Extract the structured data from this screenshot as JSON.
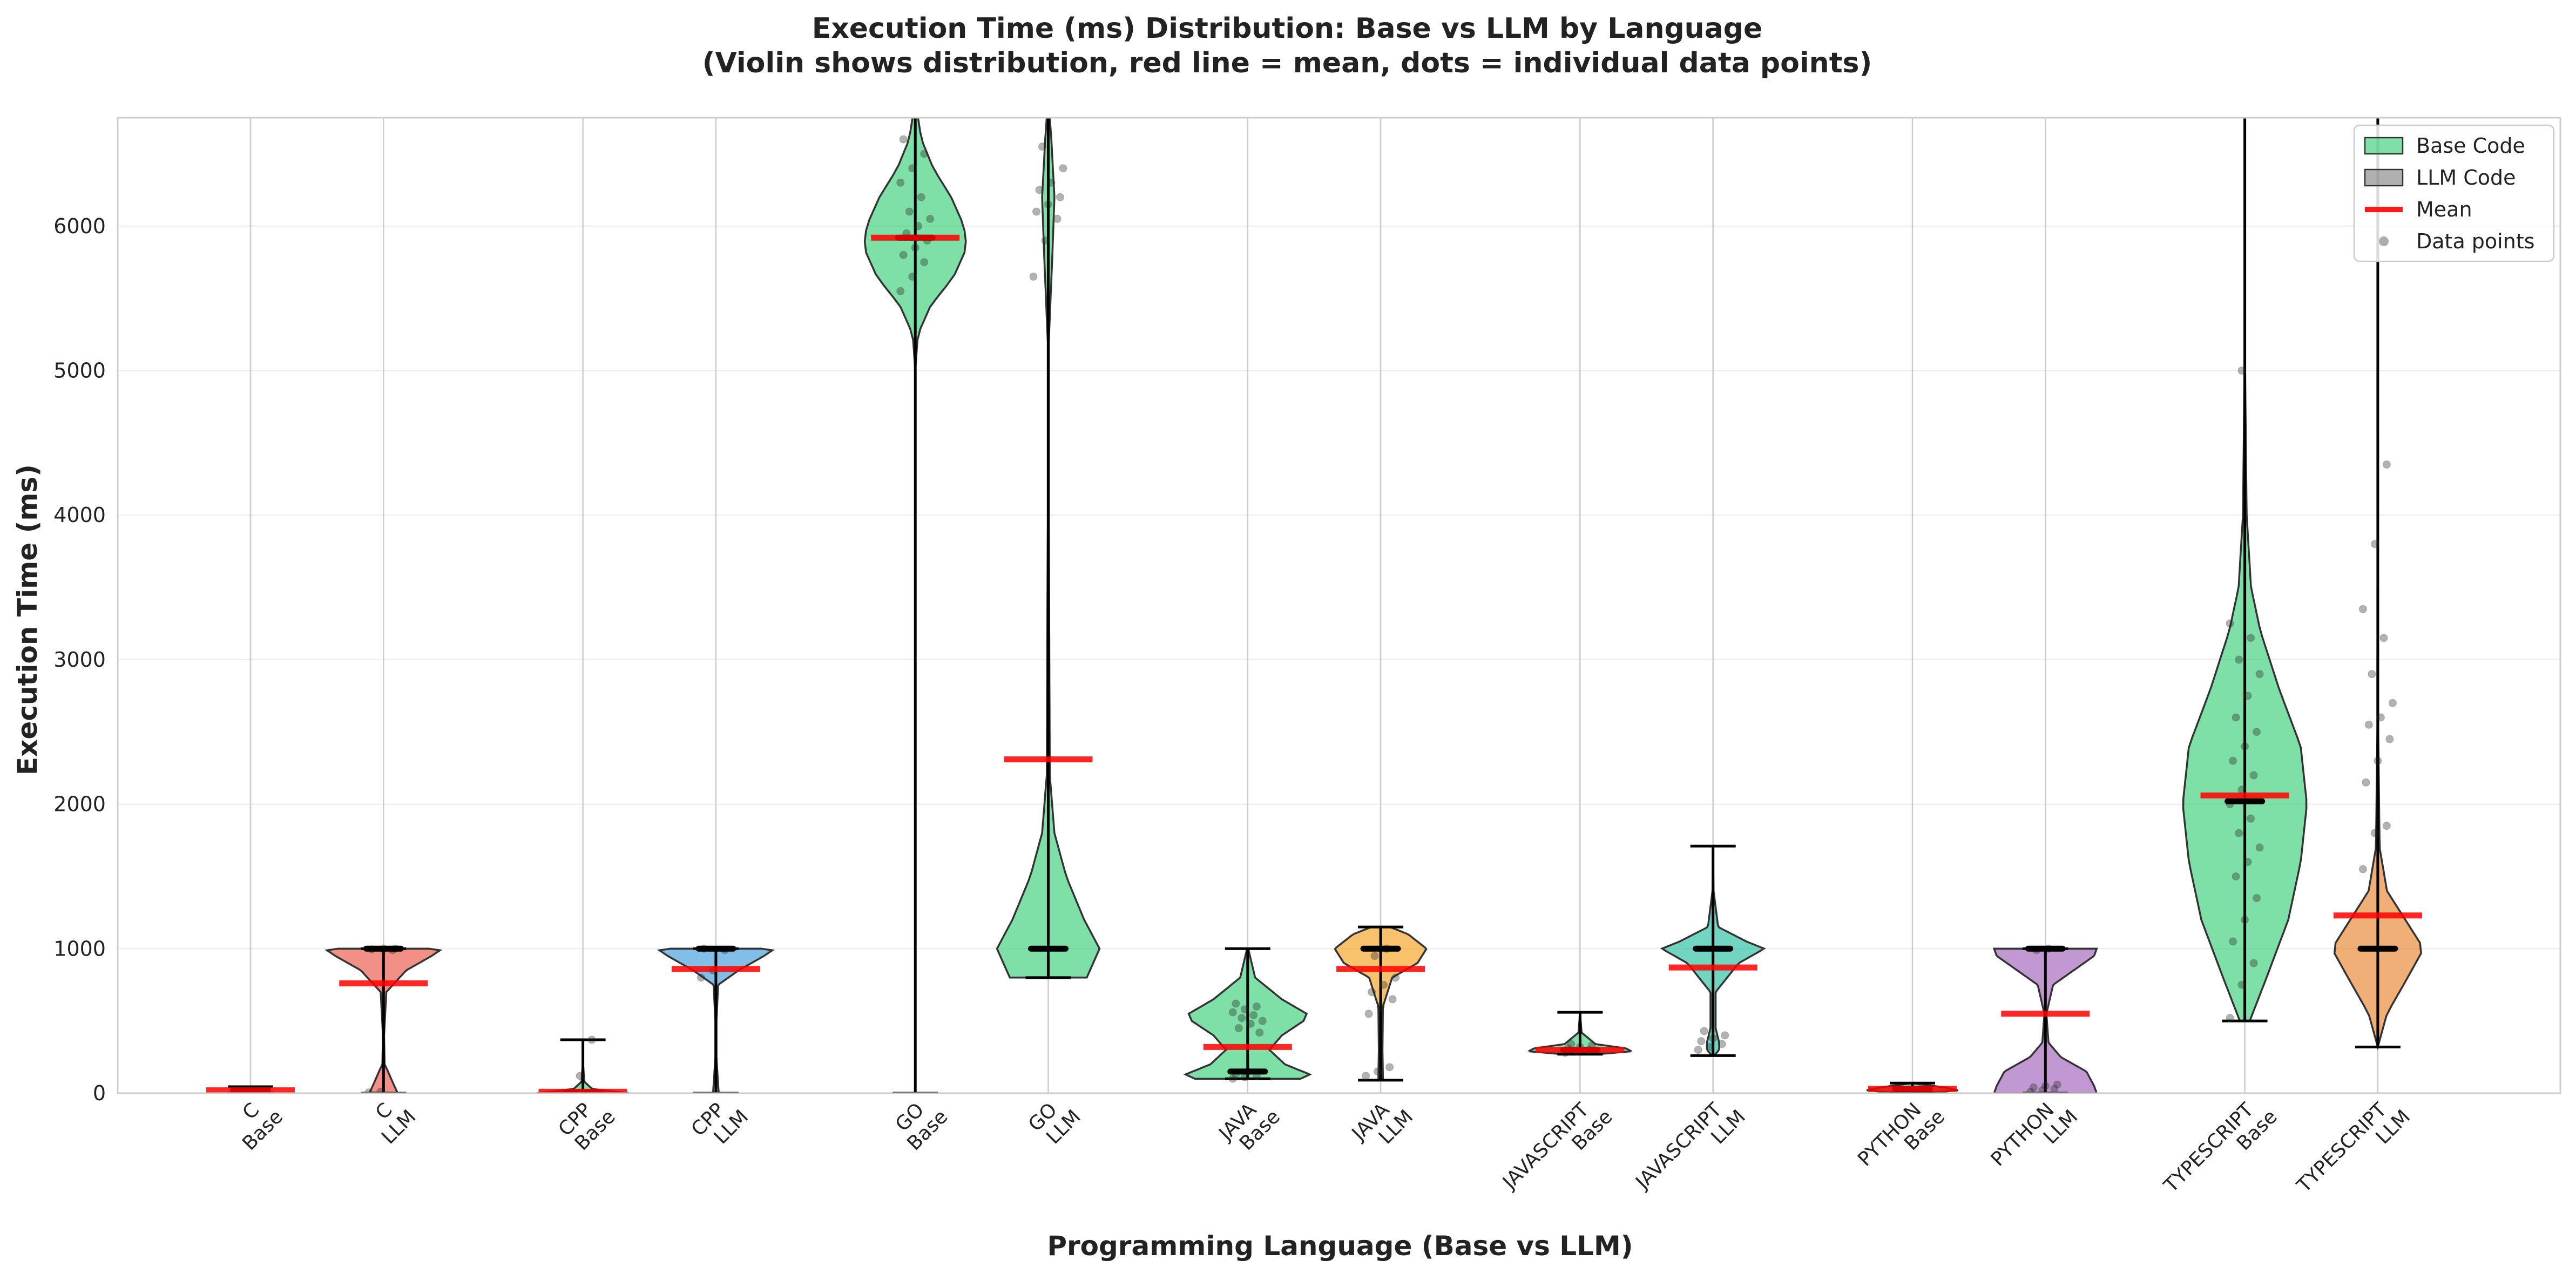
{
  "chart_data": {
    "type": "violin",
    "title": "Execution Time (ms) Distribution: Base vs LLM by Language",
    "subtitle": "(Violin shows distribution, red line = mean, dots = individual data points)",
    "xlabel": "Programming Language (Base vs LLM)",
    "ylabel": "Execution Time (ms)",
    "ylim": [
      0,
      6750
    ],
    "yticks": [
      "0",
      "1000",
      "2000",
      "3000",
      "4000",
      "5000",
      "6000"
    ],
    "grid": true,
    "legend_position": "top-right",
    "legend": [
      {
        "label": "Base Code",
        "kind": "patch",
        "color": "#2ecc71"
      },
      {
        "label": "LLM Code",
        "kind": "patch",
        "color": "#7f7f7f"
      },
      {
        "label": "Mean",
        "kind": "line",
        "color": "#ff0000"
      },
      {
        "label": "Data points",
        "kind": "dot",
        "color": "#999999"
      }
    ],
    "series": [
      {
        "language": "C",
        "variant": "Base",
        "label_line1": "C",
        "label_line2": "Base",
        "color": "#2ecc71",
        "min": 0,
        "max": 45,
        "median": 20,
        "mean": 20,
        "hw": 0,
        "shape": [
          [
            0,
            0
          ],
          [
            8,
            0.05
          ],
          [
            20,
            0.09
          ],
          [
            35,
            0.05
          ],
          [
            45,
            0
          ]
        ],
        "points": []
      },
      {
        "language": "C",
        "variant": "LLM",
        "label_line1": "C",
        "label_line2": "LLM",
        "color": "#e74c3c",
        "min": 0,
        "max": 1000,
        "median": 1000,
        "mean": 760,
        "hw": 105,
        "shape": [
          [
            0,
            0.25
          ],
          [
            60,
            0.18
          ],
          [
            150,
            0.08
          ],
          [
            200,
            0.02
          ],
          [
            400,
            0.01
          ],
          [
            700,
            0.05
          ],
          [
            850,
            0.4
          ],
          [
            950,
            0.85
          ],
          [
            990,
            1
          ],
          [
            1000,
            0.8
          ]
        ],
        "points": [
          5,
          10,
          990,
          995,
          1000,
          1000
        ]
      },
      {
        "language": "CPP",
        "variant": "Base",
        "label_line1": "CPP",
        "label_line2": "Base",
        "color": "#2ecc71",
        "min": 0,
        "max": 370,
        "median": 5,
        "mean": 10,
        "hw": 85,
        "shape": [
          [
            0,
            1
          ],
          [
            10,
            0.7
          ],
          [
            30,
            0.2
          ],
          [
            80,
            0.03
          ],
          [
            200,
            0.005
          ],
          [
            370,
            0
          ]
        ],
        "points": [
          5,
          120,
          370
        ]
      },
      {
        "language": "CPP",
        "variant": "LLM",
        "label_line1": "CPP",
        "label_line2": "LLM",
        "color": "#3498db",
        "min": 0,
        "max": 1000,
        "median": 1000,
        "mean": 860,
        "hw": 105,
        "shape": [
          [
            0,
            0.05
          ],
          [
            120,
            0.03
          ],
          [
            250,
            0.01
          ],
          [
            500,
            0.01
          ],
          [
            750,
            0.04
          ],
          [
            850,
            0.4
          ],
          [
            950,
            0.85
          ],
          [
            990,
            1
          ],
          [
            1000,
            0.8
          ]
        ],
        "points": [
          800,
          850,
          990,
          1000
        ]
      },
      {
        "language": "GO",
        "variant": "Base",
        "label_line1": "GO",
        "label_line2": "Base",
        "color": "#2ecc71",
        "min": 0,
        "max": 6800,
        "median": 5920,
        "mean": 5920,
        "hw": 95,
        "shape": [
          [
            0,
            0
          ],
          [
            5000,
            0
          ],
          [
            5250,
            0.05
          ],
          [
            5450,
            0.3
          ],
          [
            5650,
            0.75
          ],
          [
            5850,
            1
          ],
          [
            6000,
            0.95
          ],
          [
            6200,
            0.7
          ],
          [
            6400,
            0.35
          ],
          [
            6600,
            0.12
          ],
          [
            6800,
            0.03
          ]
        ],
        "points": [
          5550,
          5650,
          5750,
          5800,
          5850,
          5900,
          5950,
          6000,
          6050,
          6100,
          6200,
          6300,
          6400,
          6500,
          6600
        ]
      },
      {
        "language": "GO",
        "variant": "LLM",
        "label_line1": "GO",
        "label_line2": "LLM",
        "color": "#2ecc71",
        "min": 800,
        "max": 6800,
        "median": 1000,
        "mean": 2310,
        "hw": 95,
        "shape": [
          [
            800,
            0.75
          ],
          [
            1000,
            1
          ],
          [
            1200,
            0.7
          ],
          [
            1500,
            0.35
          ],
          [
            1800,
            0.12
          ],
          [
            2200,
            0.03
          ],
          [
            4000,
            0.01
          ],
          [
            5200,
            0.01
          ],
          [
            5800,
            0.08
          ],
          [
            6200,
            0.12
          ],
          [
            6600,
            0.06
          ],
          [
            6800,
            0.02
          ]
        ],
        "points": [
          5650,
          5900,
          6050,
          6100,
          6150,
          6200,
          6250,
          6300,
          6400,
          6550
        ]
      },
      {
        "language": "JAVA",
        "variant": "Base",
        "label_line1": "JAVA",
        "label_line2": "Base",
        "color": "#2ecc71",
        "min": 100,
        "max": 1000,
        "median": 150,
        "mean": 320,
        "hw": 115,
        "shape": [
          [
            100,
            0.85
          ],
          [
            130,
            1
          ],
          [
            200,
            0.6
          ],
          [
            300,
            0.35
          ],
          [
            400,
            0.55
          ],
          [
            500,
            0.9
          ],
          [
            550,
            0.95
          ],
          [
            650,
            0.55
          ],
          [
            800,
            0.12
          ],
          [
            1000,
            0.01
          ]
        ],
        "points": [
          100,
          110,
          120,
          130,
          150,
          420,
          450,
          480,
          500,
          520,
          540,
          560,
          580,
          600,
          620
        ]
      },
      {
        "language": "JAVA",
        "variant": "LLM",
        "label_line1": "JAVA",
        "label_line2": "LLM",
        "color": "#f39c12",
        "min": 90,
        "max": 1150,
        "median": 1000,
        "mean": 860,
        "hw": 85,
        "shape": [
          [
            90,
            0.05
          ],
          [
            300,
            0.04
          ],
          [
            600,
            0.05
          ],
          [
            800,
            0.25
          ],
          [
            900,
            0.8
          ],
          [
            1000,
            1
          ],
          [
            1100,
            0.6
          ],
          [
            1150,
            0.2
          ]
        ],
        "points": [
          120,
          150,
          180,
          550,
          600,
          650,
          700,
          750,
          800,
          950,
          1000
        ]
      },
      {
        "language": "JAVASCRIPT",
        "variant": "Base",
        "label_line1": "JAVASCRIPT",
        "label_line2": "Base",
        "color": "#2ecc71",
        "min": 270,
        "max": 560,
        "median": 300,
        "mean": 300,
        "hw": 95,
        "shape": [
          [
            270,
            0.35
          ],
          [
            290,
            1
          ],
          [
            310,
            0.9
          ],
          [
            340,
            0.3
          ],
          [
            420,
            0.03
          ],
          [
            560,
            0
          ]
        ],
        "points": [
          280,
          290,
          300,
          310,
          320,
          330,
          340
        ]
      },
      {
        "language": "JAVASCRIPT",
        "variant": "LLM",
        "label_line1": "JAVASCRIPT",
        "label_line2": "LLM",
        "color": "#1abc9c",
        "min": 260,
        "max": 1710,
        "median": 1000,
        "mean": 870,
        "hw": 95,
        "shape": [
          [
            260,
            0.02
          ],
          [
            300,
            0.12
          ],
          [
            350,
            0.12
          ],
          [
            450,
            0.05
          ],
          [
            700,
            0.05
          ],
          [
            900,
            0.5
          ],
          [
            1000,
            1
          ],
          [
            1050,
            0.65
          ],
          [
            1150,
            0.1
          ],
          [
            1400,
            0.01
          ],
          [
            1710,
            0
          ]
        ],
        "points": [
          300,
          320,
          340,
          360,
          380,
          400,
          430
        ]
      },
      {
        "language": "PYTHON",
        "variant": "Base",
        "label_line1": "PYTHON",
        "label_line2": "Base",
        "color": "#2ecc71",
        "min": 0,
        "max": 70,
        "median": 30,
        "mean": 30,
        "hw": 85,
        "shape": [
          [
            0,
            0.3
          ],
          [
            20,
            1
          ],
          [
            40,
            0.7
          ],
          [
            70,
            0
          ]
        ],
        "points": [
          15,
          25,
          35
        ]
      },
      {
        "language": "PYTHON",
        "variant": "LLM",
        "label_line1": "PYTHON",
        "label_line2": "LLM",
        "color": "#9b59b6",
        "min": 0,
        "max": 1000,
        "median": 1000,
        "mean": 550,
        "hw": 95,
        "shape": [
          [
            0,
            1
          ],
          [
            50,
            0.95
          ],
          [
            150,
            0.8
          ],
          [
            250,
            0.3
          ],
          [
            350,
            0.06
          ],
          [
            550,
            0.02
          ],
          [
            750,
            0.15
          ],
          [
            850,
            0.55
          ],
          [
            950,
            0.95
          ],
          [
            1000,
            1
          ]
        ],
        "points": [
          10,
          20,
          30,
          40,
          50,
          60,
          990,
          1000
        ]
      },
      {
        "language": "TYPESCRIPT",
        "variant": "Base",
        "label_line1": "TYPESCRIPT",
        "label_line2": "Base",
        "color": "#2ecc71",
        "min": 500,
        "max": 6800,
        "median": 2020,
        "mean": 2060,
        "hw": 115,
        "shape": [
          [
            500,
            0.08
          ],
          [
            800,
            0.35
          ],
          [
            1200,
            0.7
          ],
          [
            1600,
            0.9
          ],
          [
            2000,
            1
          ],
          [
            2400,
            0.9
          ],
          [
            2800,
            0.55
          ],
          [
            3200,
            0.25
          ],
          [
            3500,
            0.1
          ],
          [
            4000,
            0.03
          ],
          [
            5000,
            0.005
          ],
          [
            6800,
            0
          ]
        ],
        "points": [
          520,
          750,
          900,
          1050,
          1200,
          1350,
          1500,
          1600,
          1700,
          1800,
          1900,
          2000,
          2100,
          2200,
          2300,
          2400,
          2500,
          2600,
          2750,
          2900,
          3000,
          3150,
          3250,
          5000
        ]
      },
      {
        "language": "TYPESCRIPT",
        "variant": "LLM",
        "label_line1": "TYPESCRIPT",
        "label_line2": "LLM",
        "color": "#e67e22",
        "min": 320,
        "max": 6800,
        "median": 1000,
        "mean": 1230,
        "hw": 85,
        "shape": [
          [
            320,
            0
          ],
          [
            550,
            0.2
          ],
          [
            800,
            0.65
          ],
          [
            1000,
            1
          ],
          [
            1200,
            0.6
          ],
          [
            1400,
            0.2
          ],
          [
            1700,
            0.04
          ],
          [
            2500,
            0.01
          ],
          [
            6800,
            0
          ]
        ],
        "points": [
          1550,
          1800,
          1850,
          2150,
          2300,
          2450,
          2550,
          2600,
          2700,
          2900,
          3150,
          3350,
          3800,
          4350
        ]
      }
    ]
  }
}
